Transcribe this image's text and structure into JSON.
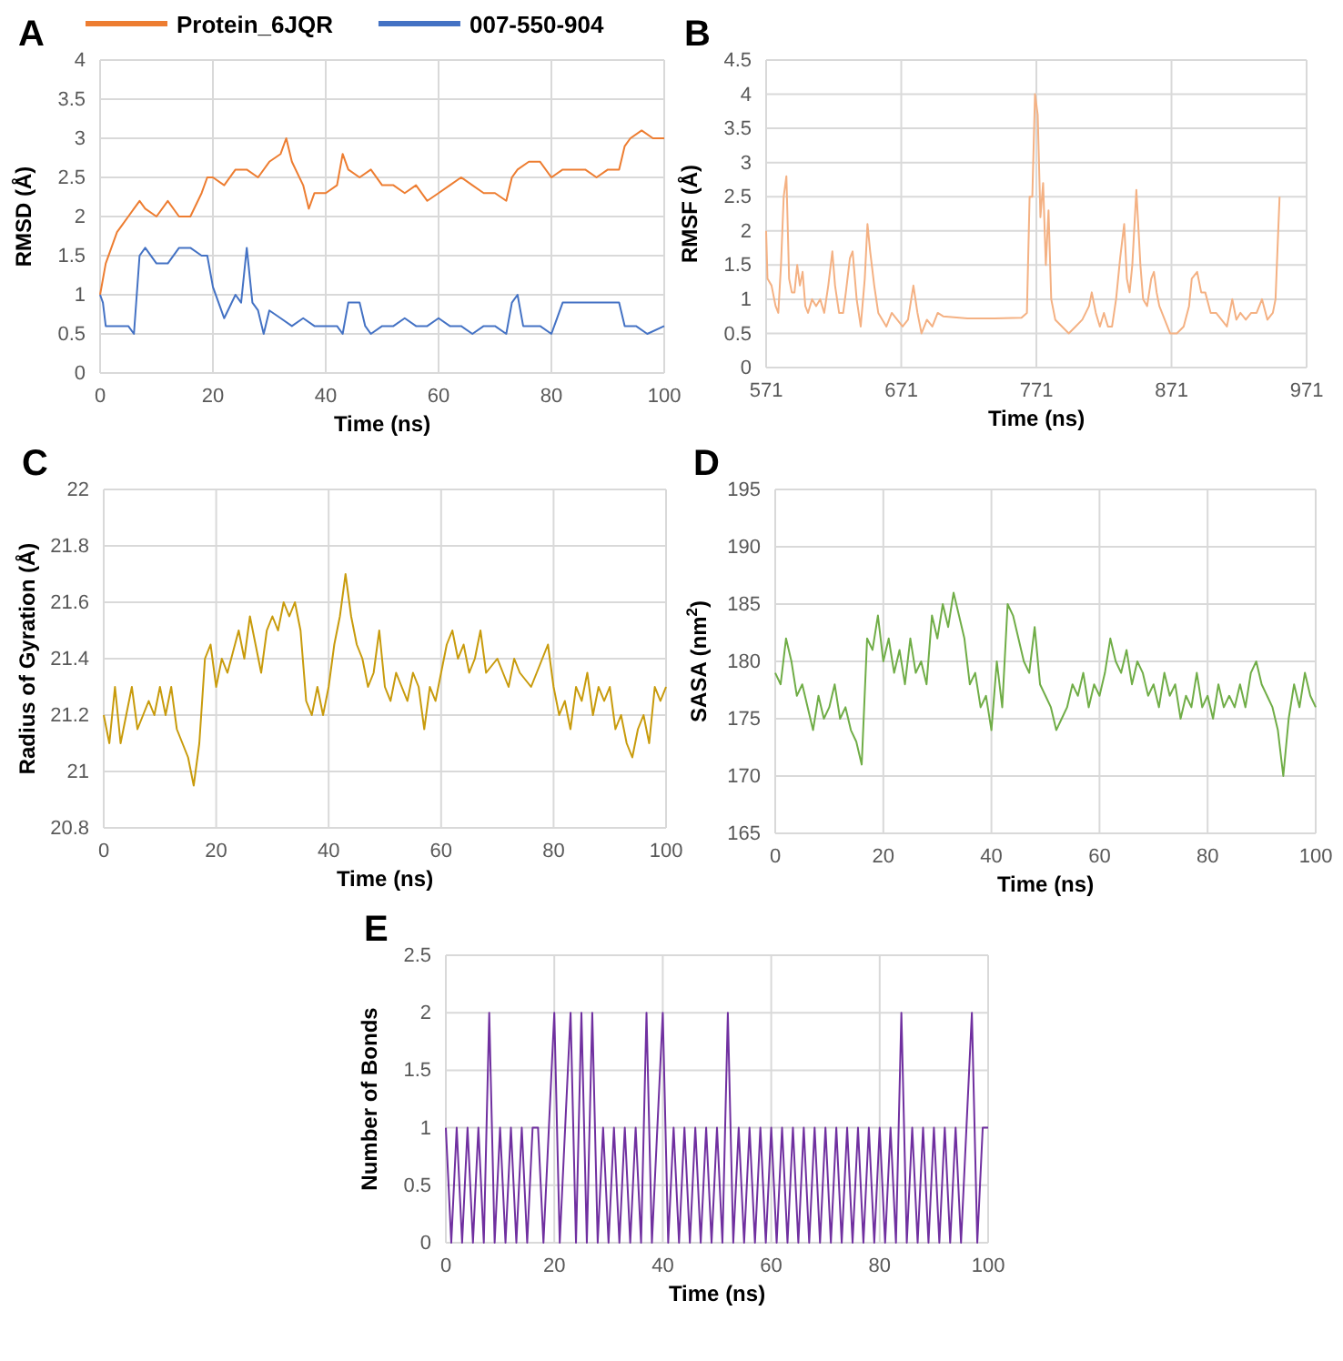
{
  "chart_data": [
    {
      "type": "line",
      "title": "A",
      "xlabel": "Time (ns)",
      "ylabel": "RMSD (Å)",
      "xlim": [
        0,
        100
      ],
      "xticks": [
        0,
        20,
        40,
        60,
        80,
        100
      ],
      "ylim": [
        0,
        4
      ],
      "yticks": [
        0,
        0.5,
        1,
        1.5,
        2,
        2.5,
        3,
        3.5,
        4
      ],
      "grid": true,
      "legend": "top",
      "series": [
        {
          "name": "Protein_6JQR",
          "color": "#ed7d31",
          "x": [
            0,
            1,
            2,
            3,
            4,
            5,
            6,
            7,
            8,
            10,
            12,
            14,
            16,
            18,
            19,
            20,
            22,
            24,
            26,
            28,
            30,
            32,
            33,
            34,
            36,
            37,
            38,
            40,
            42,
            43,
            44,
            46,
            48,
            50,
            52,
            54,
            56,
            58,
            60,
            62,
            64,
            66,
            68,
            70,
            72,
            73,
            74,
            76,
            78,
            80,
            82,
            84,
            86,
            88,
            90,
            92,
            93,
            94,
            96,
            98,
            100
          ],
          "values": [
            1.0,
            1.4,
            1.6,
            1.8,
            1.9,
            2.0,
            2.1,
            2.2,
            2.1,
            2.0,
            2.2,
            2.0,
            2.0,
            2.3,
            2.5,
            2.5,
            2.4,
            2.6,
            2.6,
            2.5,
            2.7,
            2.8,
            3.0,
            2.7,
            2.4,
            2.1,
            2.3,
            2.3,
            2.4,
            2.8,
            2.6,
            2.5,
            2.6,
            2.4,
            2.4,
            2.3,
            2.4,
            2.2,
            2.3,
            2.4,
            2.5,
            2.4,
            2.3,
            2.3,
            2.2,
            2.5,
            2.6,
            2.7,
            2.7,
            2.5,
            2.6,
            2.6,
            2.6,
            2.5,
            2.6,
            2.6,
            2.9,
            3.0,
            3.1,
            3.0,
            3.0
          ]
        },
        {
          "name": "007-550-904",
          "color": "#4472c4",
          "x": [
            0,
            0.5,
            1,
            3,
            5,
            6,
            7,
            8,
            10,
            12,
            14,
            16,
            18,
            19,
            20,
            21,
            22,
            24,
            25,
            26,
            27,
            28,
            29,
            30,
            32,
            34,
            36,
            38,
            40,
            42,
            43,
            44,
            46,
            47,
            48,
            50,
            52,
            54,
            56,
            58,
            60,
            62,
            64,
            66,
            68,
            70,
            72,
            73,
            74,
            75,
            76,
            78,
            80,
            81,
            82,
            84,
            86,
            88,
            90,
            92,
            93,
            95,
            97,
            100
          ],
          "values": [
            1.0,
            0.9,
            0.6,
            0.6,
            0.6,
            0.5,
            1.5,
            1.6,
            1.4,
            1.4,
            1.6,
            1.6,
            1.5,
            1.5,
            1.1,
            0.9,
            0.7,
            1.0,
            0.9,
            1.6,
            0.9,
            0.8,
            0.5,
            0.8,
            0.7,
            0.6,
            0.7,
            0.6,
            0.6,
            0.6,
            0.5,
            0.9,
            0.9,
            0.6,
            0.5,
            0.6,
            0.6,
            0.7,
            0.6,
            0.6,
            0.7,
            0.6,
            0.6,
            0.5,
            0.6,
            0.6,
            0.5,
            0.9,
            1.0,
            0.6,
            0.6,
            0.6,
            0.5,
            0.7,
            0.9,
            0.9,
            0.9,
            0.9,
            0.9,
            0.9,
            0.6,
            0.6,
            0.5,
            0.6
          ]
        }
      ]
    },
    {
      "type": "line",
      "title": "B",
      "xlabel": "Time (ns)",
      "ylabel": "RMSF (Å)",
      "xlim": [
        571,
        971
      ],
      "xticks": [
        571,
        671,
        771,
        871,
        971
      ],
      "ylim": [
        0,
        4.5
      ],
      "yticks": [
        0,
        0.5,
        1,
        1.5,
        2,
        2.5,
        3,
        3.5,
        4,
        4.5
      ],
      "grid": true,
      "series": [
        {
          "color": "#f4b183",
          "x": [
            571,
            572,
            575,
            578,
            580,
            582,
            584,
            586,
            588,
            590,
            592,
            594,
            596,
            598,
            600,
            602,
            605,
            608,
            611,
            614,
            617,
            620,
            622,
            625,
            628,
            630,
            633,
            635,
            638,
            641,
            644,
            646,
            648,
            651,
            654,
            657,
            660,
            664,
            668,
            672,
            676,
            680,
            683,
            686,
            690,
            694,
            698,
            702,
            720,
            740,
            760,
            764,
            766,
            768,
            770,
            772,
            774,
            776,
            778,
            780,
            782,
            785,
            790,
            795,
            800,
            805,
            810,
            812,
            815,
            818,
            821,
            824,
            827,
            830,
            833,
            836,
            838,
            840,
            842,
            845,
            848,
            850,
            853,
            856,
            858,
            860,
            862,
            866,
            870,
            875,
            880,
            884,
            886,
            890,
            893,
            896,
            900,
            904,
            908,
            912,
            916,
            919,
            922,
            926,
            930,
            934,
            938,
            942,
            946,
            948,
            951
          ],
          "values": [
            2.0,
            1.3,
            1.2,
            0.9,
            0.8,
            1.5,
            2.5,
            2.8,
            1.3,
            1.1,
            1.1,
            1.5,
            1.2,
            1.4,
            0.9,
            0.8,
            1.0,
            0.9,
            1.0,
            0.8,
            1.2,
            1.7,
            1.2,
            0.8,
            0.8,
            1.1,
            1.6,
            1.7,
            1.0,
            0.6,
            1.3,
            2.1,
            1.7,
            1.2,
            0.8,
            0.7,
            0.6,
            0.8,
            0.7,
            0.6,
            0.7,
            1.2,
            0.8,
            0.5,
            0.7,
            0.6,
            0.8,
            0.75,
            0.72,
            0.72,
            0.73,
            0.8,
            2.5,
            2.5,
            4.0,
            3.7,
            2.2,
            2.7,
            1.5,
            2.3,
            1.0,
            0.7,
            0.6,
            0.5,
            0.6,
            0.7,
            0.9,
            1.1,
            0.8,
            0.6,
            0.8,
            0.6,
            0.6,
            1.0,
            1.6,
            2.1,
            1.3,
            1.1,
            1.5,
            2.6,
            1.5,
            1.0,
            0.9,
            1.3,
            1.4,
            1.1,
            0.9,
            0.7,
            0.5,
            0.5,
            0.6,
            0.9,
            1.3,
            1.4,
            1.1,
            1.1,
            0.8,
            0.8,
            0.7,
            0.6,
            1.0,
            0.7,
            0.8,
            0.7,
            0.8,
            0.8,
            1.0,
            0.7,
            0.8,
            1.0,
            2.5
          ]
        }
      ]
    },
    {
      "type": "line",
      "title": "C",
      "xlabel": "Time (ns)",
      "ylabel": "Radius of Gyration (Å)",
      "xlim": [
        0,
        100
      ],
      "xticks": [
        0,
        20,
        40,
        60,
        80,
        100
      ],
      "ylim": [
        20.8,
        22
      ],
      "yticks": [
        20.8,
        21,
        21.2,
        21.4,
        21.6,
        21.8,
        22
      ],
      "grid": true,
      "series": [
        {
          "color": "#c89b0c",
          "x": [
            0,
            1,
            2,
            3,
            4,
            5,
            6,
            7,
            8,
            9,
            10,
            11,
            12,
            13,
            14,
            15,
            16,
            17,
            18,
            19,
            20,
            21,
            22,
            24,
            25,
            26,
            27,
            28,
            29,
            30,
            31,
            32,
            33,
            34,
            35,
            36,
            37,
            38,
            39,
            40,
            41,
            42,
            43,
            44,
            45,
            46,
            47,
            48,
            49,
            50,
            51,
            52,
            53,
            54,
            55,
            56,
            57,
            58,
            59,
            60,
            61,
            62,
            63,
            64,
            65,
            66,
            67,
            68,
            70,
            72,
            73,
            74,
            76,
            78,
            79,
            80,
            81,
            82,
            83,
            84,
            85,
            86,
            87,
            88,
            89,
            90,
            91,
            92,
            93,
            94,
            95,
            96,
            97,
            98,
            99,
            100
          ],
          "values": [
            21.2,
            21.1,
            21.3,
            21.1,
            21.2,
            21.3,
            21.15,
            21.2,
            21.25,
            21.2,
            21.3,
            21.2,
            21.3,
            21.15,
            21.1,
            21.05,
            20.95,
            21.1,
            21.4,
            21.45,
            21.3,
            21.4,
            21.35,
            21.5,
            21.4,
            21.55,
            21.45,
            21.35,
            21.5,
            21.55,
            21.5,
            21.6,
            21.55,
            21.6,
            21.5,
            21.25,
            21.2,
            21.3,
            21.2,
            21.3,
            21.45,
            21.55,
            21.7,
            21.55,
            21.45,
            21.4,
            21.3,
            21.35,
            21.5,
            21.3,
            21.25,
            21.35,
            21.3,
            21.25,
            21.35,
            21.3,
            21.15,
            21.3,
            21.25,
            21.35,
            21.45,
            21.5,
            21.4,
            21.45,
            21.35,
            21.4,
            21.5,
            21.35,
            21.4,
            21.3,
            21.4,
            21.35,
            21.3,
            21.4,
            21.45,
            21.3,
            21.2,
            21.25,
            21.15,
            21.3,
            21.25,
            21.35,
            21.2,
            21.3,
            21.25,
            21.3,
            21.15,
            21.2,
            21.1,
            21.05,
            21.15,
            21.2,
            21.1,
            21.3,
            21.25,
            21.3
          ]
        }
      ]
    },
    {
      "type": "line",
      "title": "D",
      "xlabel": "Time (ns)",
      "ylabel": "SASA (nm$^{2}$)",
      "xlim": [
        0,
        100
      ],
      "xticks": [
        0,
        20,
        40,
        60,
        80,
        100
      ],
      "ylim": [
        165,
        195
      ],
      "yticks": [
        165,
        170,
        175,
        180,
        185,
        190,
        195
      ],
      "grid": true,
      "series": [
        {
          "color": "#70ad47",
          "x": [
            0,
            1,
            2,
            3,
            4,
            5,
            6,
            7,
            8,
            9,
            10,
            11,
            12,
            13,
            14,
            15,
            16,
            17,
            18,
            19,
            20,
            21,
            22,
            23,
            24,
            25,
            26,
            27,
            28,
            29,
            30,
            31,
            32,
            33,
            34,
            35,
            36,
            37,
            38,
            39,
            40,
            41,
            42,
            43,
            44,
            45,
            46,
            47,
            48,
            49,
            50,
            51,
            52,
            53,
            54,
            55,
            56,
            57,
            58,
            59,
            60,
            61,
            62,
            63,
            64,
            65,
            66,
            67,
            68,
            69,
            70,
            71,
            72,
            73,
            74,
            75,
            76,
            77,
            78,
            79,
            80,
            81,
            82,
            83,
            84,
            85,
            86,
            87,
            88,
            89,
            90,
            91,
            92,
            93,
            94,
            95,
            96,
            97,
            98,
            99,
            100
          ],
          "values": [
            179,
            178,
            182,
            180,
            177,
            178,
            176,
            174,
            177,
            175,
            176,
            178,
            175,
            176,
            174,
            173,
            171,
            182,
            181,
            184,
            180,
            182,
            179,
            181,
            178,
            182,
            179,
            180,
            178,
            184,
            182,
            185,
            183,
            186,
            184,
            182,
            178,
            179,
            176,
            177,
            174,
            180,
            176,
            185,
            184,
            182,
            180,
            179,
            183,
            178,
            177,
            176,
            174,
            175,
            176,
            178,
            177,
            179,
            176,
            178,
            177,
            179,
            182,
            180,
            179,
            181,
            178,
            180,
            179,
            177,
            178,
            176,
            179,
            177,
            178,
            175,
            177,
            176,
            179,
            176,
            177,
            175,
            178,
            176,
            177,
            176,
            178,
            176,
            179,
            180,
            178,
            177,
            176,
            174,
            170,
            175,
            178,
            176,
            179,
            177,
            176
          ]
        }
      ]
    },
    {
      "type": "line",
      "title": "E",
      "xlabel": "Time (ns)",
      "ylabel": "Number of Bonds",
      "xlim": [
        0,
        100
      ],
      "xticks": [
        0,
        20,
        40,
        60,
        80,
        100
      ],
      "ylim": [
        0,
        2.5
      ],
      "yticks": [
        0,
        0.5,
        1,
        1.5,
        2,
        2.5
      ],
      "grid": true,
      "series": [
        {
          "color": "#7030a0",
          "x": [
            0,
            1,
            2,
            3,
            4,
            5,
            6,
            7,
            8,
            9,
            10,
            11,
            12,
            13,
            14,
            15,
            16,
            17,
            18,
            19,
            20,
            21,
            22,
            23,
            24,
            25,
            26,
            27,
            28,
            29,
            30,
            31,
            32,
            33,
            34,
            35,
            36,
            37,
            38,
            39,
            40,
            41,
            42,
            43,
            44,
            45,
            46,
            47,
            48,
            49,
            50,
            51,
            52,
            53,
            54,
            55,
            56,
            57,
            58,
            59,
            60,
            61,
            62,
            63,
            64,
            65,
            66,
            67,
            68,
            69,
            70,
            71,
            72,
            73,
            74,
            75,
            76,
            77,
            78,
            79,
            80,
            81,
            82,
            83,
            84,
            85,
            86,
            87,
            88,
            89,
            90,
            91,
            92,
            93,
            94,
            95,
            96,
            97,
            98,
            99,
            100
          ],
          "values": [
            1,
            0,
            1,
            0,
            1,
            0,
            1,
            0,
            2,
            0,
            1,
            0,
            1,
            0,
            1,
            0,
            1,
            1,
            0,
            1,
            2,
            0,
            1,
            2,
            0,
            2,
            0,
            2,
            0,
            1,
            0,
            1,
            0,
            1,
            0,
            1,
            0,
            2,
            0,
            1,
            2,
            0,
            1,
            0,
            1,
            0,
            1,
            0,
            1,
            0,
            1,
            0,
            2,
            0,
            1,
            0,
            1,
            0,
            1,
            0,
            1,
            0,
            1,
            0,
            1,
            0,
            1,
            0,
            1,
            0,
            1,
            0,
            1,
            0,
            1,
            0,
            1,
            0,
            1,
            0,
            1,
            0,
            1,
            0,
            2,
            0,
            1,
            0,
            1,
            0,
            1,
            0,
            1,
            0,
            1,
            0,
            1,
            2,
            0,
            1,
            1
          ]
        }
      ]
    }
  ]
}
